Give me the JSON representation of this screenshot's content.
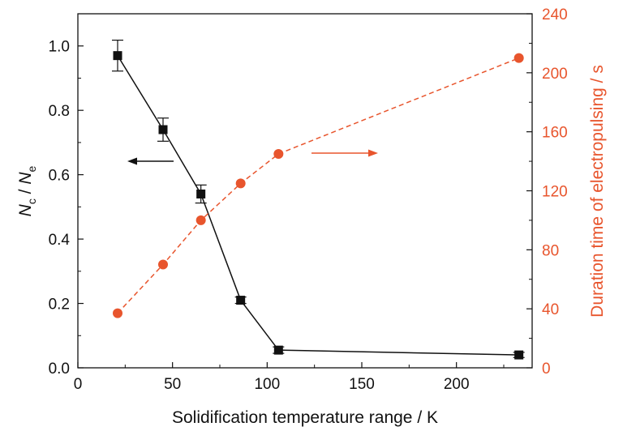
{
  "chart_data": {
    "type": "scatter",
    "xlabel": "Solidification temperature range / K",
    "ylabel_left": {
      "main": "N",
      "sub1": "c",
      "sep": " / ",
      "main2": "N",
      "sub2": "e"
    },
    "ylabel_right": "Duration time of electropulsing / s",
    "xlim": [
      0,
      240
    ],
    "ylim_left": [
      0,
      1.1
    ],
    "ylim_right": [
      0,
      240
    ],
    "xticks": [
      "0",
      "50",
      "100",
      "150",
      "200"
    ],
    "yticks_left": [
      "0.0",
      "0.2",
      "0.4",
      "0.6",
      "0.8",
      "1.0"
    ],
    "yticks_right": [
      "0",
      "40",
      "80",
      "120",
      "160",
      "200",
      "240"
    ],
    "colors": {
      "left": "#111111",
      "right": "#e8552d"
    },
    "series": [
      {
        "name": "Nc/Ne",
        "axis": "left",
        "style": "solid-line-square-markers",
        "color": "#111111",
        "x": [
          21,
          45,
          65,
          86,
          106,
          233
        ],
        "y": [
          0.97,
          0.74,
          0.54,
          0.21,
          0.055,
          0.04
        ],
        "err": [
          0.048,
          0.036,
          0.028,
          0.01,
          0.01,
          0.008
        ]
      },
      {
        "name": "Duration time",
        "axis": "right",
        "style": "dashed-line-circle-markers",
        "color": "#e8552d",
        "x": [
          21,
          45,
          65,
          86,
          106,
          233
        ],
        "y": [
          37,
          70,
          100,
          125,
          145,
          210
        ]
      }
    ],
    "annotations": [
      {
        "type": "arrow",
        "direction": "left",
        "meaning": "points to left axis",
        "color": "#111111"
      },
      {
        "type": "arrow",
        "direction": "right",
        "meaning": "points to right axis",
        "color": "#e8552d"
      }
    ]
  }
}
